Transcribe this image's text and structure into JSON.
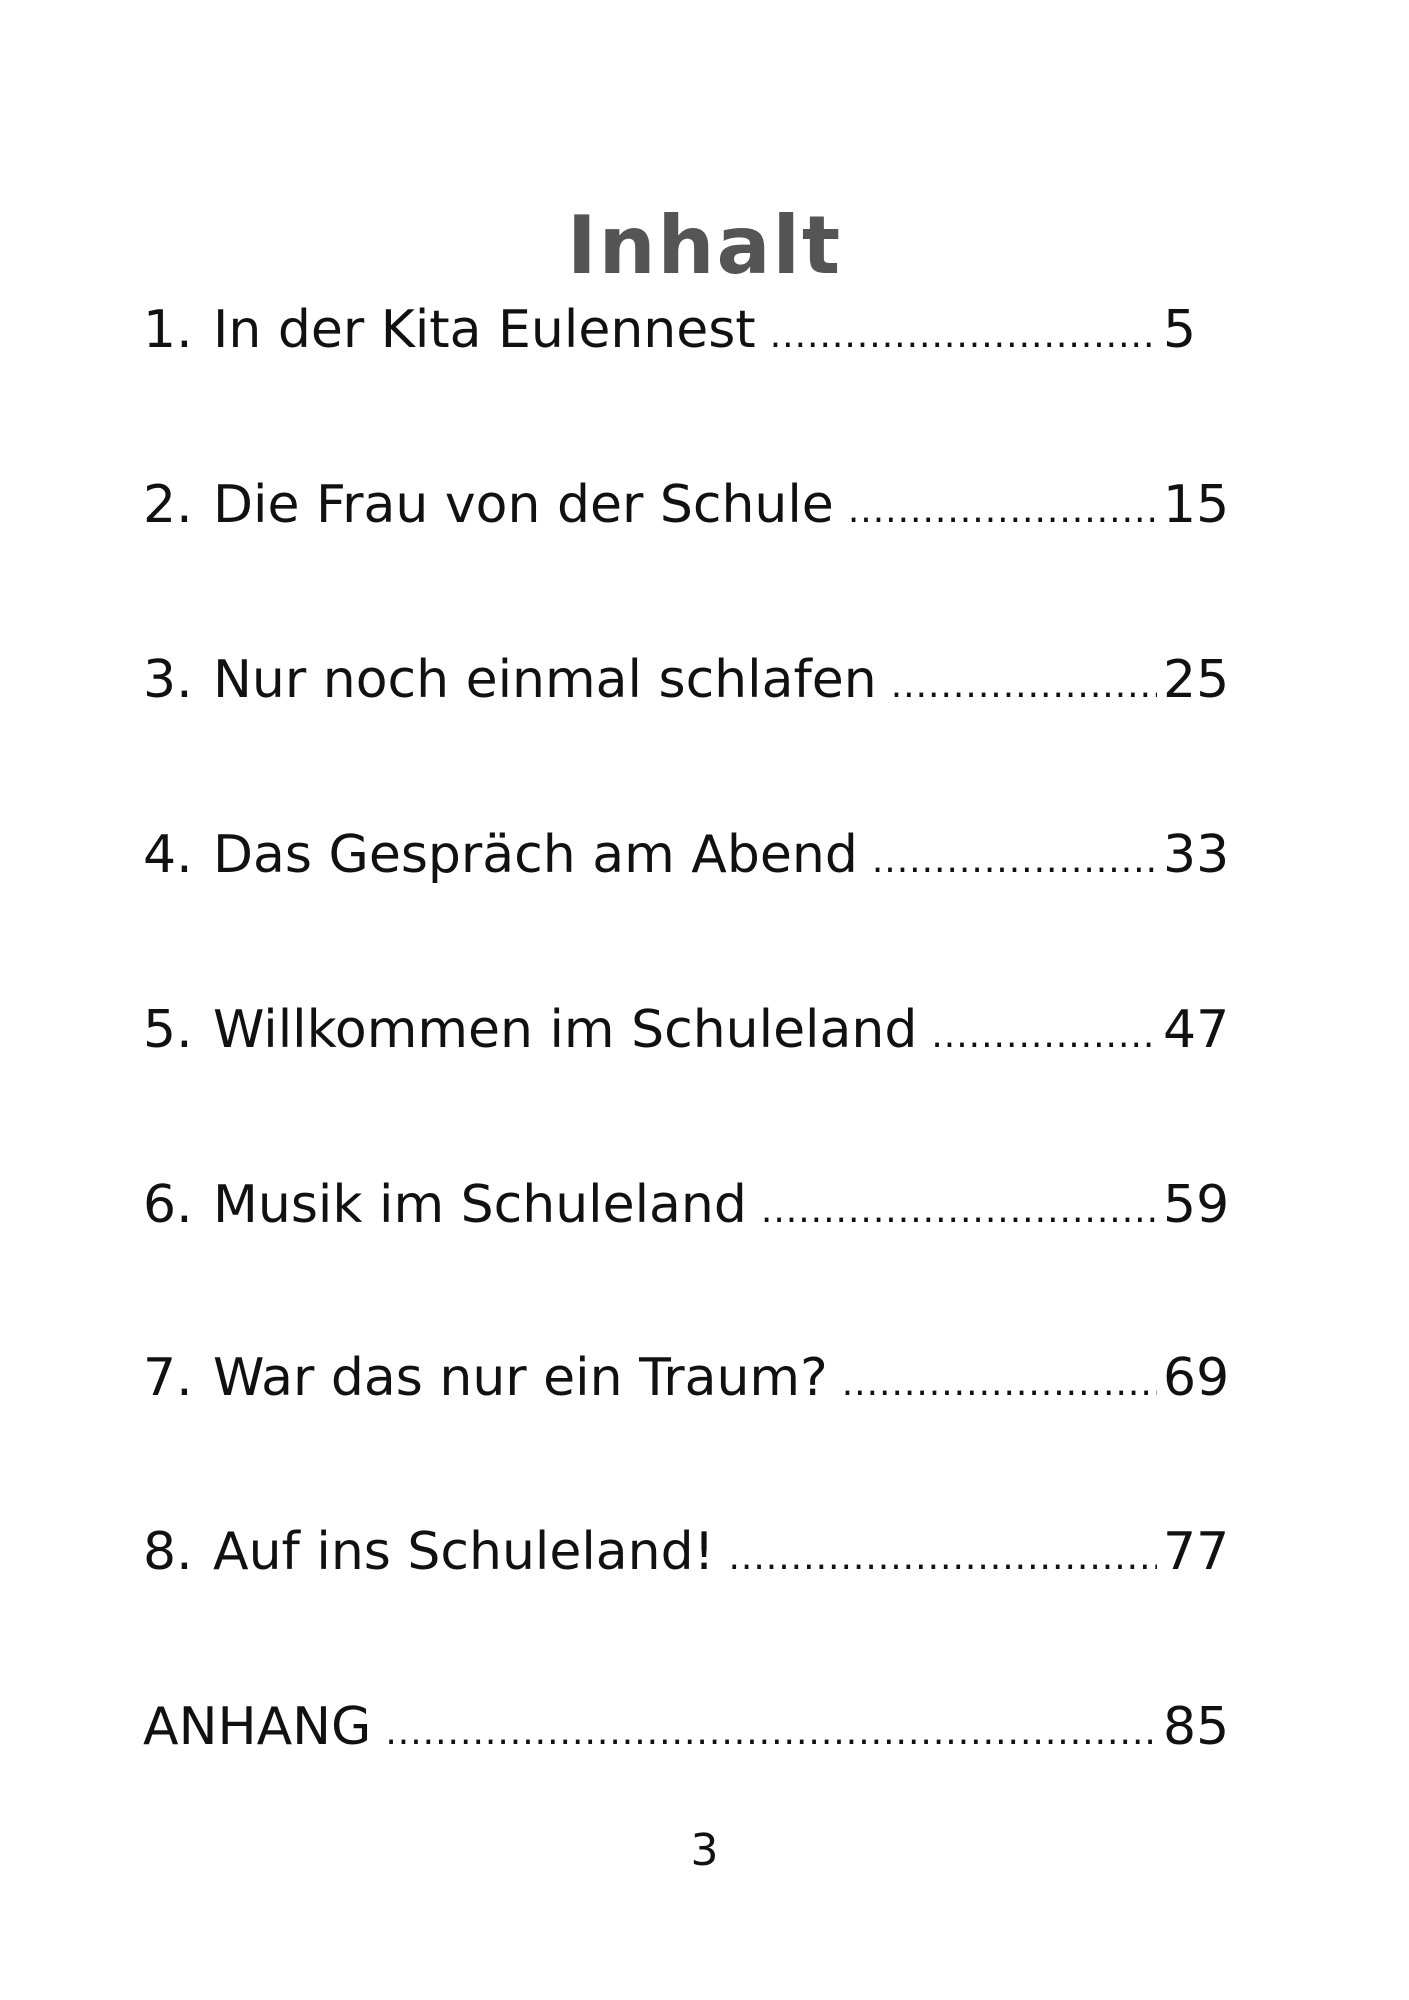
{
  "title": "Inhalt",
  "entries": [
    {
      "number": "1.",
      "label": "In der Kita Eulennest",
      "page": "5"
    },
    {
      "number": "2.",
      "label": "Die Frau von der Schule",
      "page": "15"
    },
    {
      "number": "3.",
      "label": "Nur noch einmal schlafen",
      "page": "25"
    },
    {
      "number": "4.",
      "label": "Das Gespräch am Abend",
      "page": "33"
    },
    {
      "number": "5.",
      "label": "Willkommen im Schuleland",
      "page": "47"
    },
    {
      "number": "6.",
      "label": "Musik im Schuleland",
      "page": "59"
    },
    {
      "number": "7.",
      "label": "War das nur ein Traum?",
      "page": "69"
    },
    {
      "number": "8.",
      "label": "Auf ins Schuleland!",
      "page": "77"
    },
    {
      "number": "",
      "label": "ANHANG",
      "page": "85"
    }
  ],
  "page_number": "3"
}
